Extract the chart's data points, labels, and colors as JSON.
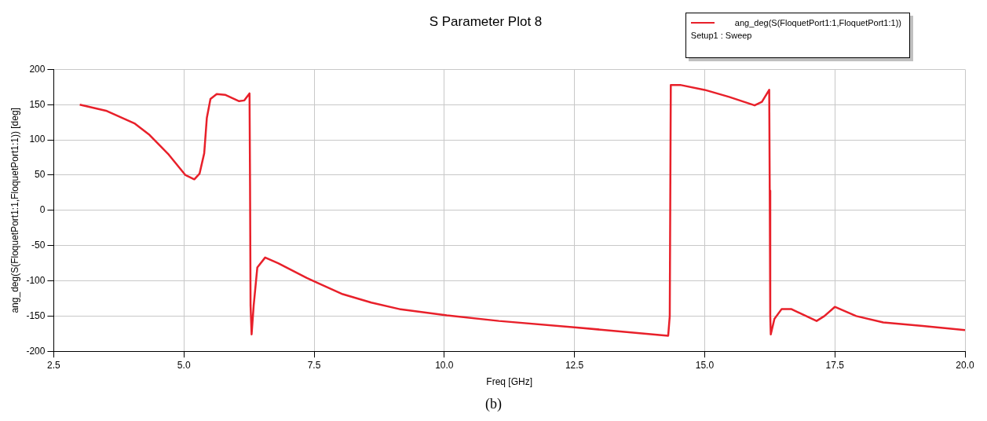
{
  "chart_data": {
    "type": "line",
    "title": "S Parameter Plot 8",
    "xlabel": "Freq [GHz]",
    "ylabel": "ang_deg(S(FloquetPort1:1,FloquetPort1:1)) [deg]",
    "annotations": [
      "Setup1 : Sweep",
      "(b)"
    ],
    "legend": "top right",
    "grid": true,
    "marker": "none",
    "line_style": "solid",
    "xlim": [
      2.5,
      20
    ],
    "xticks": [
      2.5,
      {
        "value": 5,
        "label": "5.0"
      },
      7.5,
      {
        "value": 10,
        "label": "10.0"
      },
      12.5,
      {
        "value": 15,
        "label": "15.0"
      },
      17.5,
      {
        "value": 20,
        "label": "20.0"
      }
    ],
    "ylim": [
      -200,
      200
    ],
    "yticks": [
      -200,
      -150,
      -100,
      -50,
      0,
      50,
      100,
      150,
      200
    ],
    "series": [
      {
        "name": "ang_deg(S(FloquetPort1:1,FloquetPort1:1))",
        "color": "#e8202a",
        "x": [
          3.0,
          3.52,
          4.06,
          4.34,
          4.71,
          5.03,
          5.2,
          5.3,
          5.39,
          5.44,
          5.51,
          5.63,
          5.79,
          6.06,
          6.16,
          6.26,
          6.27,
          6.28,
          6.3,
          6.34,
          6.41,
          6.56,
          6.81,
          7.36,
          7.54,
          8.05,
          8.6,
          9.13,
          10.05,
          11.05,
          12.5,
          14.3,
          14.33,
          14.35,
          14.53,
          15.0,
          15.47,
          15.96,
          16.1,
          16.24,
          16.25,
          16.26,
          16.27,
          16.34,
          16.48,
          16.66,
          17.15,
          17.3,
          17.5,
          17.91,
          18.43,
          19.19,
          20.0
        ],
        "values": [
          150,
          141,
          123,
          107,
          79,
          50,
          44,
          52,
          81,
          131,
          158,
          165,
          164,
          155,
          156,
          166,
          40,
          -135,
          -176,
          -135,
          -81,
          -67,
          -75,
          -96,
          -102,
          -119,
          -131,
          -140,
          -149,
          -157,
          -166,
          -178,
          -150,
          178,
          178,
          171,
          161,
          149,
          154,
          171,
          28,
          -150,
          -176,
          -154,
          -140,
          -140,
          -157,
          -150,
          -137,
          -150,
          -159,
          -164,
          -170
        ]
      }
    ]
  }
}
